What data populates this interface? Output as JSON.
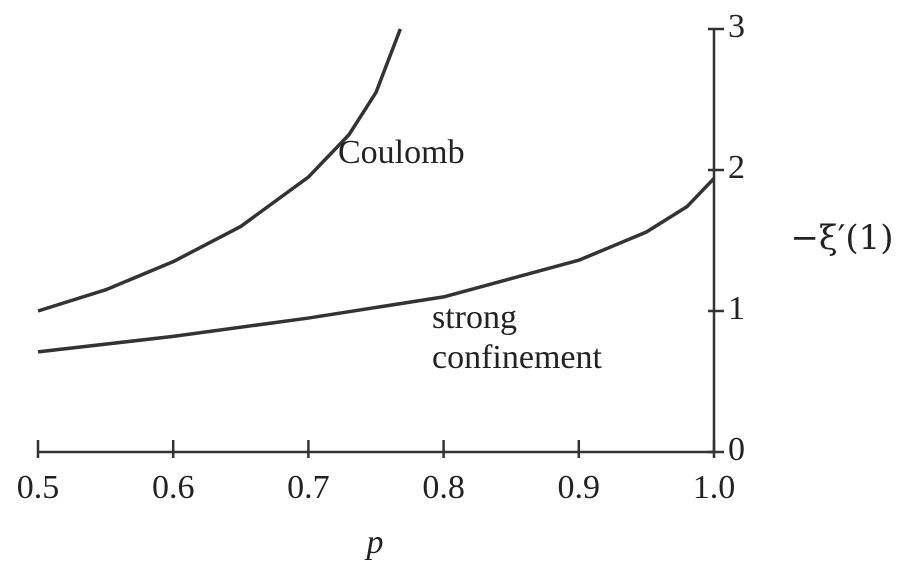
{
  "chart_data": {
    "type": "line",
    "xlabel": "p",
    "ylabel": "−ξ′(1)",
    "annotations": [
      "Coulomb",
      "strong",
      "confinement"
    ],
    "series": [
      {
        "name": "Coulomb",
        "color": "#333333",
        "x": [
          0.5,
          0.55,
          0.6,
          0.65,
          0.7,
          0.73,
          0.75,
          0.768
        ],
        "values": [
          1.0,
          1.15,
          1.35,
          1.6,
          1.95,
          2.25,
          2.55,
          3.0
        ]
      },
      {
        "name": "strong confinement",
        "color": "#333333",
        "x": [
          0.5,
          0.6,
          0.7,
          0.8,
          0.9,
          0.95,
          0.98,
          1.0
        ],
        "values": [
          0.71,
          0.82,
          0.95,
          1.1,
          1.36,
          1.56,
          1.74,
          1.94
        ]
      }
    ],
    "xlim": [
      0.5,
      1.0
    ],
    "xticks": [
      0.5,
      0.6,
      0.7,
      0.8,
      0.9,
      {
        "value": 1.0,
        "label": "1.0"
      }
    ],
    "ylim": [
      0,
      3
    ],
    "yticks": [
      0,
      1,
      2,
      3
    ],
    "yaxis_side": "right",
    "grid": false
  }
}
